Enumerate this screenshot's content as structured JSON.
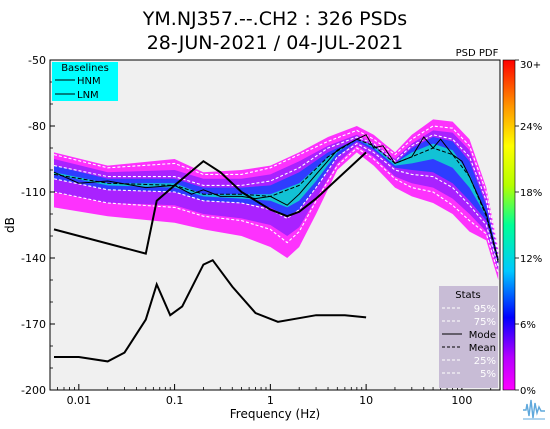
{
  "header": {
    "title_line1": "YM.NJ357.--.CH2 : 326 PSDs",
    "title_line2": "28-JUN-2021 / 04-JUL-2021"
  },
  "colorbar": {
    "label": "PSD PDF",
    "ticks": [
      "30+",
      "24%",
      "18%",
      "12%",
      "6%",
      "0%"
    ],
    "tick_values": [
      30,
      24,
      18,
      12,
      6,
      0
    ],
    "colors": [
      "#ff00ff",
      "#b400ff",
      "#0000ff",
      "#00c8ff",
      "#00ff96",
      "#b4ff00",
      "#ffff00",
      "#ff9600",
      "#ff0000"
    ]
  },
  "baselines_legend": {
    "title": "Baselines",
    "items": [
      "HNM",
      "LNM"
    ],
    "background": "#00ffff"
  },
  "stats_legend": {
    "title": "Stats",
    "items": [
      {
        "label": "95%",
        "style": "white-dashed"
      },
      {
        "label": "75%",
        "style": "white-dashed"
      },
      {
        "label": "Mode",
        "style": "black-solid"
      },
      {
        "label": "Mean",
        "style": "black-dashed"
      },
      {
        "label": "25%",
        "style": "white-dashed"
      },
      {
        "label": "5%",
        "style": "white-dashed"
      }
    ],
    "background": "#c8bcd6"
  },
  "chart_data": {
    "type": "heatmap",
    "xlabel": "Frequency (Hz)",
    "ylabel": "dB",
    "xscale": "log",
    "xlim": [
      0.005,
      250
    ],
    "ylim": [
      -200,
      -50
    ],
    "xticks": [
      {
        "value": 0.01,
        "label": "0.01"
      },
      {
        "value": 0.1,
        "label": "0.1"
      },
      {
        "value": 1,
        "label": "1"
      },
      {
        "value": 10,
        "label": "10"
      },
      {
        "value": 100,
        "label": "100"
      }
    ],
    "yticks": [
      -50,
      -80,
      -110,
      -140,
      -170,
      -200
    ],
    "background": "#f0f0f0",
    "baselines": {
      "HNM": [
        [
          0.0055,
          -127
        ],
        [
          0.05,
          -138
        ],
        [
          0.065,
          -114
        ],
        [
          0.1,
          -107
        ],
        [
          0.2,
          -96
        ],
        [
          0.3,
          -101
        ],
        [
          0.5,
          -110
        ],
        [
          1,
          -118
        ],
        [
          1.5,
          -121
        ],
        [
          2,
          -119
        ],
        [
          3,
          -113
        ],
        [
          10,
          -92
        ]
      ],
      "LNM": [
        [
          0.0055,
          -185
        ],
        [
          0.01,
          -185
        ],
        [
          0.02,
          -187
        ],
        [
          0.03,
          -183
        ],
        [
          0.05,
          -168
        ],
        [
          0.065,
          -152
        ],
        [
          0.09,
          -166
        ],
        [
          0.12,
          -162
        ],
        [
          0.2,
          -143
        ],
        [
          0.25,
          -141
        ],
        [
          0.4,
          -153
        ],
        [
          0.7,
          -165
        ],
        [
          1.2,
          -169
        ],
        [
          3,
          -166
        ],
        [
          6,
          -166
        ],
        [
          10,
          -167
        ]
      ]
    },
    "pdf_bands": [
      {
        "level": 2,
        "low": [
          [
            0.0055,
            -92
          ],
          [
            0.02,
            -98
          ],
          [
            0.1,
            -95
          ],
          [
            0.2,
            -101
          ],
          [
            0.5,
            -100
          ],
          [
            1,
            -98
          ],
          [
            2,
            -92
          ],
          [
            4,
            -85
          ],
          [
            8,
            -80
          ],
          [
            12,
            -84
          ],
          [
            20,
            -92
          ],
          [
            30,
            -84
          ],
          [
            50,
            -77
          ],
          [
            80,
            -78
          ],
          [
            120,
            -86
          ],
          [
            180,
            -108
          ],
          [
            240,
            -136
          ]
        ],
        "high": [
          [
            0.0055,
            -117
          ],
          [
            0.02,
            -121
          ],
          [
            0.1,
            -124
          ],
          [
            0.2,
            -127
          ],
          [
            0.5,
            -130
          ],
          [
            1,
            -135
          ],
          [
            1.5,
            -140
          ],
          [
            2,
            -135
          ],
          [
            3,
            -120
          ],
          [
            5,
            -100
          ],
          [
            8,
            -92
          ],
          [
            12,
            -98
          ],
          [
            20,
            -108
          ],
          [
            30,
            -112
          ],
          [
            50,
            -115
          ],
          [
            80,
            -120
          ],
          [
            120,
            -128
          ],
          [
            180,
            -132
          ],
          [
            240,
            -150
          ]
        ]
      },
      {
        "level": 6,
        "low": [
          [
            0.0055,
            -95
          ],
          [
            0.02,
            -101
          ],
          [
            0.1,
            -100
          ],
          [
            0.2,
            -104
          ],
          [
            0.5,
            -104
          ],
          [
            1,
            -102
          ],
          [
            2,
            -96
          ],
          [
            4,
            -89
          ],
          [
            8,
            -84
          ],
          [
            12,
            -88
          ],
          [
            20,
            -95
          ],
          [
            30,
            -88
          ],
          [
            50,
            -82
          ],
          [
            80,
            -83
          ],
          [
            120,
            -91
          ],
          [
            180,
            -112
          ],
          [
            240,
            -138
          ]
        ],
        "high": [
          [
            0.0055,
            -110
          ],
          [
            0.02,
            -115
          ],
          [
            0.1,
            -116
          ],
          [
            0.2,
            -120
          ],
          [
            0.5,
            -122
          ],
          [
            1,
            -125
          ],
          [
            1.5,
            -130
          ],
          [
            2,
            -126
          ],
          [
            3,
            -113
          ],
          [
            5,
            -97
          ],
          [
            8,
            -89
          ],
          [
            12,
            -94
          ],
          [
            20,
            -103
          ],
          [
            30,
            -106
          ],
          [
            50,
            -108
          ],
          [
            80,
            -113
          ],
          [
            120,
            -120
          ],
          [
            180,
            -128
          ],
          [
            240,
            -146
          ]
        ]
      },
      {
        "level": 12,
        "low": [
          [
            0.0055,
            -98
          ],
          [
            0.02,
            -104
          ],
          [
            0.1,
            -104
          ],
          [
            0.2,
            -108
          ],
          [
            0.5,
            -108
          ],
          [
            1,
            -107
          ],
          [
            2,
            -101
          ],
          [
            4,
            -92
          ],
          [
            8,
            -86
          ],
          [
            12,
            -89
          ],
          [
            20,
            -97
          ],
          [
            30,
            -90
          ],
          [
            50,
            -85
          ],
          [
            80,
            -87
          ],
          [
            120,
            -96
          ],
          [
            180,
            -116
          ],
          [
            240,
            -140
          ]
        ],
        "high": [
          [
            0.0055,
            -104
          ],
          [
            0.02,
            -109
          ],
          [
            0.1,
            -110
          ],
          [
            0.2,
            -114
          ],
          [
            0.5,
            -115
          ],
          [
            1,
            -117
          ],
          [
            1.5,
            -121
          ],
          [
            2,
            -118
          ],
          [
            3,
            -108
          ],
          [
            5,
            -94
          ],
          [
            8,
            -87
          ],
          [
            12,
            -91
          ],
          [
            20,
            -99
          ],
          [
            30,
            -100
          ],
          [
            50,
            -101
          ],
          [
            80,
            -106
          ],
          [
            120,
            -114
          ],
          [
            180,
            -123
          ],
          [
            240,
            -143
          ]
        ]
      },
      {
        "level": 24,
        "low": [
          [
            0.0055,
            -101
          ],
          [
            0.02,
            -106
          ],
          [
            0.1,
            -106
          ],
          [
            0.2,
            -111
          ],
          [
            0.5,
            -111
          ],
          [
            1,
            -111
          ],
          [
            2,
            -106
          ],
          [
            4,
            -94
          ],
          [
            8,
            -86
          ],
          [
            12,
            -89
          ],
          [
            20,
            -97
          ],
          [
            30,
            -92
          ],
          [
            50,
            -88
          ],
          [
            80,
            -91
          ],
          [
            120,
            -102
          ],
          [
            180,
            -120
          ],
          [
            240,
            -141
          ]
        ],
        "high": [
          [
            0.0055,
            -102
          ],
          [
            0.02,
            -107
          ],
          [
            0.1,
            -108
          ],
          [
            0.2,
            -112
          ],
          [
            0.5,
            -113
          ],
          [
            1,
            -114
          ],
          [
            1.5,
            -117
          ],
          [
            2,
            -114
          ],
          [
            3,
            -105
          ],
          [
            5,
            -92
          ],
          [
            8,
            -86
          ],
          [
            12,
            -90
          ],
          [
            20,
            -98
          ],
          [
            30,
            -97
          ],
          [
            50,
            -95
          ],
          [
            80,
            -99
          ],
          [
            120,
            -108
          ],
          [
            180,
            -121
          ],
          [
            240,
            -142
          ]
        ]
      }
    ],
    "stats": {
      "p95": [
        [
          0.0055,
          -93
        ],
        [
          0.02,
          -99
        ],
        [
          0.1,
          -97
        ],
        [
          0.2,
          -102
        ],
        [
          0.5,
          -102
        ],
        [
          1,
          -99
        ],
        [
          2,
          -93
        ],
        [
          4,
          -87
        ],
        [
          8,
          -82
        ],
        [
          12,
          -86
        ],
        [
          20,
          -93
        ],
        [
          30,
          -86
        ],
        [
          50,
          -80
        ],
        [
          80,
          -81
        ],
        [
          120,
          -89
        ],
        [
          180,
          -110
        ],
        [
          240,
          -137
        ]
      ],
      "p75": [
        [
          0.0055,
          -98
        ],
        [
          0.02,
          -103
        ],
        [
          0.1,
          -103
        ],
        [
          0.2,
          -107
        ],
        [
          0.5,
          -107
        ],
        [
          1,
          -105
        ],
        [
          2,
          -99
        ],
        [
          4,
          -90
        ],
        [
          8,
          -85
        ],
        [
          12,
          -88
        ],
        [
          20,
          -96
        ],
        [
          30,
          -89
        ],
        [
          50,
          -84
        ],
        [
          80,
          -86
        ],
        [
          120,
          -94
        ],
        [
          180,
          -114
        ],
        [
          240,
          -139
        ]
      ],
      "mode": [
        [
          0.0055,
          -101
        ],
        [
          0.01,
          -106
        ],
        [
          0.02,
          -105
        ],
        [
          0.05,
          -108
        ],
        [
          0.1,
          -107
        ],
        [
          0.15,
          -111
        ],
        [
          0.2,
          -109
        ],
        [
          0.3,
          -112
        ],
        [
          0.5,
          -112
        ],
        [
          0.7,
          -113
        ],
        [
          1,
          -112
        ],
        [
          1.5,
          -116
        ],
        [
          2,
          -111
        ],
        [
          3,
          -102
        ],
        [
          5,
          -91
        ],
        [
          8,
          -86
        ],
        [
          10,
          -84
        ],
        [
          12,
          -90
        ],
        [
          15,
          -89
        ],
        [
          20,
          -97
        ],
        [
          30,
          -94
        ],
        [
          40,
          -85
        ],
        [
          50,
          -90
        ],
        [
          60,
          -86
        ],
        [
          80,
          -93
        ],
        [
          100,
          -96
        ],
        [
          120,
          -103
        ],
        [
          180,
          -120
        ],
        [
          240,
          -141
        ]
      ],
      "mean": [
        [
          0.0055,
          -102
        ],
        [
          0.02,
          -106
        ],
        [
          0.1,
          -107
        ],
        [
          0.2,
          -111
        ],
        [
          0.5,
          -111
        ],
        [
          1,
          -112
        ],
        [
          2,
          -107
        ],
        [
          4,
          -94
        ],
        [
          8,
          -86
        ],
        [
          12,
          -89
        ],
        [
          20,
          -97
        ],
        [
          30,
          -94
        ],
        [
          50,
          -90
        ],
        [
          80,
          -93
        ],
        [
          120,
          -103
        ],
        [
          180,
          -121
        ],
        [
          240,
          -142
        ]
      ],
      "p25": [
        [
          0.0055,
          -104
        ],
        [
          0.02,
          -109
        ],
        [
          0.1,
          -110
        ],
        [
          0.2,
          -114
        ],
        [
          0.5,
          -115
        ],
        [
          1,
          -118
        ],
        [
          1.5,
          -122
        ],
        [
          2,
          -118
        ],
        [
          3,
          -108
        ],
        [
          5,
          -94
        ],
        [
          8,
          -88
        ],
        [
          12,
          -92
        ],
        [
          20,
          -100
        ],
        [
          30,
          -102
        ],
        [
          50,
          -103
        ],
        [
          80,
          -108
        ],
        [
          120,
          -116
        ],
        [
          180,
          -125
        ],
        [
          240,
          -144
        ]
      ],
      "p5": [
        [
          0.0055,
          -110
        ],
        [
          0.02,
          -115
        ],
        [
          0.1,
          -117
        ],
        [
          0.2,
          -121
        ],
        [
          0.5,
          -123
        ],
        [
          1,
          -127
        ],
        [
          1.5,
          -133
        ],
        [
          2,
          -128
        ],
        [
          3,
          -114
        ],
        [
          5,
          -98
        ],
        [
          8,
          -90
        ],
        [
          12,
          -95
        ],
        [
          20,
          -104
        ],
        [
          30,
          -108
        ],
        [
          50,
          -110
        ],
        [
          80,
          -116
        ],
        [
          120,
          -123
        ],
        [
          180,
          -129
        ],
        [
          240,
          -147
        ]
      ]
    }
  }
}
